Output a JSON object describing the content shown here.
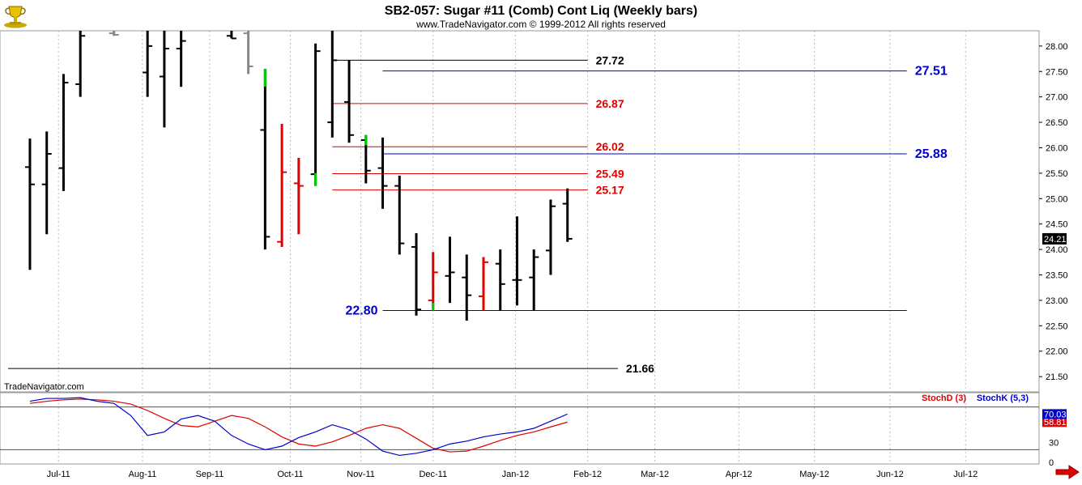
{
  "header": {
    "title": "SB2-057:  Sugar #11 (Comb) Cont Liq  (Weekly bars)",
    "subtitle": "www.TradeNavigator.com © 1999-2012 All rights reserved",
    "brand": "TradeNavigator.com"
  },
  "icons": {
    "logo": "trophy-logo-icon",
    "scroll": "right-arrow-icon"
  },
  "colors": {
    "up_bar": "#00cc00",
    "down_bar": "#e00000",
    "stale_bar": "#888888",
    "blue_level": "#0000cc",
    "red_level": "#e00000",
    "black_level": "#000000",
    "stochD": "#e00000",
    "stochK": "#0000cc"
  },
  "chart_data": [
    {
      "type": "bar",
      "subtype": "ohlc",
      "title": "SB2-057:  Sugar #11 (Comb) Cont Liq  (Weekly bars)",
      "ylim": [
        21.2,
        28.3
      ],
      "xlim": [
        0,
        60
      ],
      "y_ticks": [
        "21.50",
        "22.00",
        "22.50",
        "23.00",
        "23.50",
        "24.00",
        "24.50",
        "25.00",
        "25.50",
        "26.00",
        "26.50",
        "27.00",
        "27.50",
        "28.00"
      ],
      "x_ticks": [
        {
          "label": "Jul-11",
          "x": 3.0
        },
        {
          "label": "Aug-11",
          "x": 8.0
        },
        {
          "label": "Sep-11",
          "x": 12.0
        },
        {
          "label": "Oct-11",
          "x": 16.8
        },
        {
          "label": "Nov-11",
          "x": 21.0
        },
        {
          "label": "Dec-11",
          "x": 25.3
        },
        {
          "label": "Jan-12",
          "x": 30.2
        },
        {
          "label": "Feb-12",
          "x": 34.5
        },
        {
          "label": "Mar-12",
          "x": 38.5
        },
        {
          "label": "Apr-12",
          "x": 43.5
        },
        {
          "label": "May-12",
          "x": 48.0
        },
        {
          "label": "Jun-12",
          "x": 52.5
        },
        {
          "label": "Jul-12",
          "x": 57.0
        }
      ],
      "last_price": "24.21",
      "bars": [
        {
          "x": 1.3,
          "o": 25.62,
          "h": 26.18,
          "l": 23.6,
          "c": 25.28,
          "color": "black"
        },
        {
          "x": 2.3,
          "o": 25.28,
          "h": 26.32,
          "l": 24.3,
          "c": 25.88,
          "color": "black"
        },
        {
          "x": 3.3,
          "o": 25.6,
          "h": 27.45,
          "l": 25.15,
          "c": 27.28,
          "color": "black"
        },
        {
          "x": 4.3,
          "o": 27.25,
          "h": 28.3,
          "l": 27.0,
          "c": 28.2,
          "color": "black"
        },
        {
          "x": 6.3,
          "o": 28.25,
          "h": 28.3,
          "l": 28.2,
          "c": 28.22,
          "color": "stale"
        },
        {
          "x": 8.3,
          "o": 27.48,
          "h": 28.3,
          "l": 27.0,
          "c": 28.0,
          "color": "black"
        },
        {
          "x": 9.3,
          "o": 27.4,
          "h": 28.3,
          "l": 26.4,
          "c": 27.95,
          "color": "black"
        },
        {
          "x": 10.3,
          "o": 27.95,
          "h": 28.3,
          "l": 27.2,
          "c": 28.1,
          "color": "black"
        },
        {
          "x": 13.3,
          "o": 28.2,
          "h": 28.3,
          "l": 28.15,
          "c": 28.15,
          "color": "black"
        },
        {
          "x": 14.3,
          "o": 28.25,
          "h": 28.3,
          "l": 27.45,
          "c": 27.6,
          "color": "stale"
        },
        {
          "x": 15.3,
          "o": 26.35,
          "h": 27.55,
          "l": 24.0,
          "c": 24.25,
          "color": "black"
        },
        {
          "x": 16.3,
          "o": 24.15,
          "h": 26.47,
          "l": 24.05,
          "c": 25.52,
          "color": "red"
        },
        {
          "x": 17.3,
          "o": 25.3,
          "h": 25.8,
          "l": 24.3,
          "c": 25.25,
          "color": "red"
        },
        {
          "x": 18.3,
          "o": 25.48,
          "h": 28.05,
          "l": 25.25,
          "c": 27.9,
          "color": "black"
        },
        {
          "x": 19.3,
          "o": 26.5,
          "h": 28.3,
          "l": 26.2,
          "c": 27.72,
          "color": "black"
        },
        {
          "x": 20.3,
          "o": 26.9,
          "h": 27.72,
          "l": 26.1,
          "c": 26.25,
          "color": "black"
        },
        {
          "x": 21.3,
          "o": 26.15,
          "h": 26.25,
          "l": 25.3,
          "c": 25.55,
          "color": "black"
        },
        {
          "x": 22.3,
          "o": 25.6,
          "h": 26.2,
          "l": 24.8,
          "c": 25.25,
          "color": "black"
        },
        {
          "x": 23.3,
          "o": 25.25,
          "h": 25.45,
          "l": 23.9,
          "c": 24.12,
          "color": "black"
        },
        {
          "x": 24.3,
          "o": 24.05,
          "h": 24.32,
          "l": 22.7,
          "c": 22.82,
          "color": "black"
        },
        {
          "x": 25.3,
          "o": 23.0,
          "h": 23.95,
          "l": 22.8,
          "c": 23.55,
          "color": "red"
        },
        {
          "x": 26.3,
          "o": 23.48,
          "h": 24.25,
          "l": 22.95,
          "c": 23.55,
          "color": "black"
        },
        {
          "x": 27.3,
          "o": 23.45,
          "h": 23.9,
          "l": 22.6,
          "c": 23.1,
          "color": "black"
        },
        {
          "x": 28.3,
          "o": 23.08,
          "h": 23.85,
          "l": 22.8,
          "c": 23.75,
          "color": "red"
        },
        {
          "x": 29.3,
          "o": 23.72,
          "h": 24.0,
          "l": 22.8,
          "c": 23.32,
          "color": "black"
        },
        {
          "x": 30.3,
          "o": 23.4,
          "h": 24.65,
          "l": 22.9,
          "c": 23.4,
          "color": "black"
        },
        {
          "x": 31.3,
          "o": 23.45,
          "h": 24.0,
          "l": 22.8,
          "c": 23.85,
          "color": "black"
        },
        {
          "x": 32.3,
          "o": 23.98,
          "h": 24.98,
          "l": 23.5,
          "c": 24.85,
          "color": "black"
        },
        {
          "x": 33.3,
          "o": 24.9,
          "h": 25.2,
          "l": 24.15,
          "c": 24.21,
          "color": "black"
        }
      ],
      "up_ticks": [
        {
          "x": 15.3,
          "from": 27.2,
          "to": 27.55
        },
        {
          "x": 18.3,
          "from": 25.25,
          "to": 25.5
        },
        {
          "x": 21.3,
          "from": 26.05,
          "to": 26.25
        },
        {
          "x": 25.3,
          "from": 22.8,
          "to": 22.95
        }
      ],
      "levels": [
        {
          "value": 27.72,
          "label": "27.72",
          "color": "black",
          "x0": 19.3,
          "x1": 34.5,
          "label_side": "right"
        },
        {
          "value": 27.51,
          "label": "27.51",
          "color": "blue",
          "x0": 22.3,
          "x1": 53.5,
          "label_side": "right"
        },
        {
          "value": 26.87,
          "label": "26.87",
          "color": "red",
          "x0": 19.3,
          "x1": 34.5,
          "label_side": "right"
        },
        {
          "value": 26.02,
          "label": "26.02",
          "color": "red",
          "x0": 19.3,
          "x1": 34.5,
          "label_side": "right"
        },
        {
          "value": 25.88,
          "label": "25.88",
          "color": "blue",
          "x0": 22.3,
          "x1": 53.5,
          "label_side": "right"
        },
        {
          "value": 25.49,
          "label": "25.49",
          "color": "red",
          "x0": 19.3,
          "x1": 34.5,
          "label_side": "right"
        },
        {
          "value": 25.17,
          "label": "25.17",
          "color": "red",
          "x0": 19.3,
          "x1": 34.5,
          "label_side": "right"
        },
        {
          "value": 22.8,
          "label": "22.80",
          "color": "blue",
          "x0": 22.3,
          "x1": 53.5,
          "label_side": "left"
        },
        {
          "value": 21.66,
          "label": "21.66",
          "color": "black",
          "x0": 0,
          "x1": 36.3,
          "label_side": "right"
        }
      ]
    },
    {
      "type": "line",
      "ylim": [
        0,
        100
      ],
      "y_ticks": [
        "0",
        "30"
      ],
      "reference_lines": [
        20,
        80
      ],
      "series": [
        {
          "name": "StochD (3)",
          "value_label": "58.81",
          "x": [
            1.3,
            2.3,
            3.3,
            4.3,
            5.3,
            6.3,
            7.3,
            8.3,
            9.3,
            10.3,
            11.3,
            12.3,
            13.3,
            14.3,
            15.3,
            16.3,
            17.3,
            18.3,
            19.3,
            20.3,
            21.3,
            22.3,
            23.3,
            24.3,
            25.3,
            26.3,
            27.3,
            28.3,
            29.3,
            30.3,
            31.3,
            32.3,
            33.3
          ],
          "values": [
            85,
            88,
            90,
            91,
            90,
            88,
            84,
            75,
            64,
            54,
            52,
            60,
            68,
            64,
            52,
            38,
            28,
            25,
            31,
            40,
            50,
            55,
            50,
            36,
            22,
            17,
            18,
            25,
            33,
            40,
            45,
            52,
            58.81
          ]
        },
        {
          "name": "StochK (5,3)",
          "value_label": "70.03",
          "x": [
            1.3,
            2.3,
            3.3,
            4.3,
            5.3,
            6.3,
            7.3,
            8.3,
            9.3,
            10.3,
            11.3,
            12.3,
            13.3,
            14.3,
            15.3,
            16.3,
            17.3,
            18.3,
            19.3,
            20.3,
            21.3,
            22.3,
            23.3,
            24.3,
            25.3,
            26.3,
            27.3,
            28.3,
            29.3,
            30.3,
            31.3,
            32.3,
            33.3
          ],
          "values": [
            88,
            92,
            92,
            93,
            88,
            85,
            68,
            40,
            45,
            63,
            68,
            60,
            40,
            28,
            20,
            25,
            37,
            45,
            55,
            48,
            35,
            18,
            12,
            15,
            20,
            28,
            32,
            38,
            42,
            45,
            50,
            60,
            70.03
          ]
        }
      ]
    }
  ]
}
